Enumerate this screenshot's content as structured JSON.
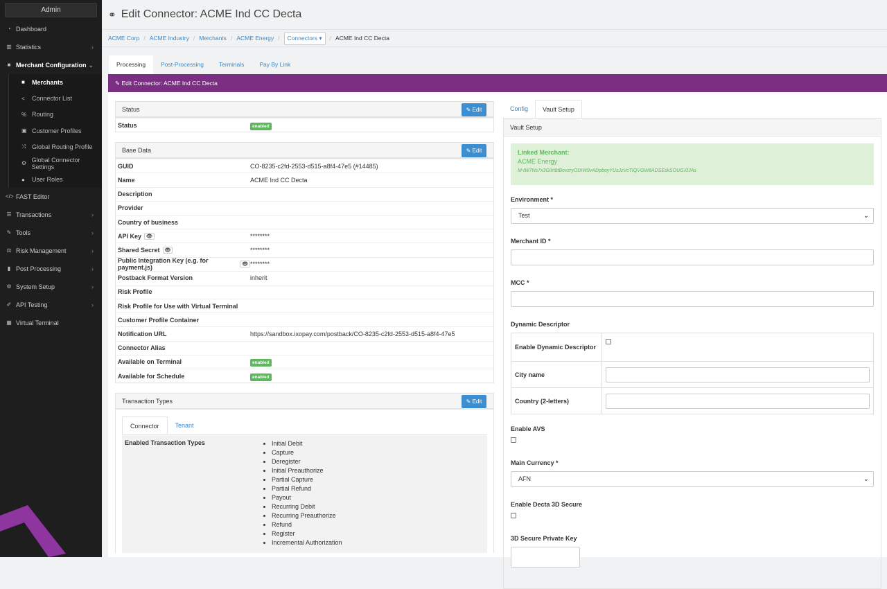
{
  "sidebar": {
    "admin": "Admin",
    "items": [
      {
        "label": "Dashboard",
        "icon": "dashboard-icon"
      },
      {
        "label": "Statistics",
        "icon": "chart-icon"
      },
      {
        "label": "Merchant Configuration",
        "icon": "briefcase-icon"
      },
      {
        "label": "FAST Editor",
        "icon": "code-icon"
      },
      {
        "label": "Transactions",
        "icon": "list-icon"
      },
      {
        "label": "Tools",
        "icon": "wrench-icon"
      },
      {
        "label": "Risk Management",
        "icon": "scale-icon"
      },
      {
        "label": "Post Processing",
        "icon": "book-icon"
      },
      {
        "label": "System Setup",
        "icon": "gear-icon"
      },
      {
        "label": "API Testing",
        "icon": "eyedropper-icon"
      },
      {
        "label": "Virtual Terminal",
        "icon": "calculator-icon"
      }
    ],
    "subitems": [
      {
        "label": "Merchants"
      },
      {
        "label": "Connector List"
      },
      {
        "label": "Routing"
      },
      {
        "label": "Customer Profiles"
      },
      {
        "label": "Global Routing Profile"
      },
      {
        "label": "Global Connector Settings"
      },
      {
        "label": "User Roles"
      }
    ]
  },
  "header": {
    "title": "Edit Connector: ACME Ind CC Decta"
  },
  "breadcrumb": {
    "items": [
      "ACME Corp",
      "ACME Industry",
      "Merchants",
      "ACME Energy"
    ],
    "dropdown": "Connectors",
    "current": "ACME Ind CC Decta"
  },
  "tabs": [
    "Processing",
    "Post-Processing",
    "Terminals",
    "Pay By Link"
  ],
  "bar_title": "Edit Connector: ACME Ind CC Decta",
  "edit_label": "Edit",
  "status_panel": {
    "title": "Status",
    "label": "Status",
    "value": "enabled"
  },
  "base_panel": {
    "title": "Base Data",
    "rows": [
      {
        "k": "GUID",
        "v": "CO-8235-c2fd-2553-d515-a8f4-47e5 (#14485)"
      },
      {
        "k": "Name",
        "v": "ACME Ind CC Decta"
      },
      {
        "k": "Description",
        "v": ""
      },
      {
        "k": "Provider",
        "v": ""
      },
      {
        "k": "Country of business",
        "v": ""
      },
      {
        "k": "API Key",
        "v": "********"
      },
      {
        "k": "Shared Secret",
        "v": "********"
      },
      {
        "k": "Public Integration Key (e.g. for payment.js)",
        "v": "********"
      },
      {
        "k": "Postback Format Version",
        "v": "inherit"
      },
      {
        "k": "Risk Profile",
        "v": ""
      },
      {
        "k": "Risk Profile for Use with Virtual Terminal",
        "v": ""
      },
      {
        "k": "Customer Profile Container",
        "v": ""
      },
      {
        "k": "Notification URL",
        "v": "https://sandbox.ixopay.com/postback/CO-8235-c2fd-2553-d515-a8f4-47e5"
      },
      {
        "k": "Connector Alias",
        "v": ""
      },
      {
        "k": "Available on Terminal",
        "v": "enabled"
      },
      {
        "k": "Available for Schedule",
        "v": "enabled"
      }
    ]
  },
  "tx_panel": {
    "title": "Transaction Types",
    "tabs": [
      "Connector",
      "Tenant"
    ],
    "label": "Enabled Transaction Types",
    "types": [
      "Initial Debit",
      "Capture",
      "Deregister",
      "Initial Preauthorize",
      "Partial Capture",
      "Partial Refund",
      "Payout",
      "Recurring Debit",
      "Recurring Preauthorize",
      "Refund",
      "Register",
      "Incremental Authorization"
    ]
  },
  "right": {
    "tabs": [
      "Config",
      "Vault Setup"
    ],
    "title": "Vault Setup",
    "linked_label": "Linked Merchant:",
    "linked_name": "ACME Energy",
    "linked_id": "M-tW7Ns7x3GiIrt8tBovzryODIW9vADpboyYUsJzVcTIQVGW8ADSEskSOUGXfJAs",
    "environment_label": "Environment *",
    "environment_value": "Test",
    "merchant_id_label": "Merchant ID *",
    "mcc_label": "MCC *",
    "dd_title": "Dynamic Descriptor",
    "dd_enable": "Enable Dynamic Descriptor",
    "dd_city": "City name",
    "dd_country": "Country (2-letters)",
    "avs_label": "Enable AVS",
    "currency_label": "Main Currency *",
    "currency_value": "AFN",
    "secure_label": "Enable Decta 3D Secure",
    "key_label": "3D Secure Private Key"
  }
}
